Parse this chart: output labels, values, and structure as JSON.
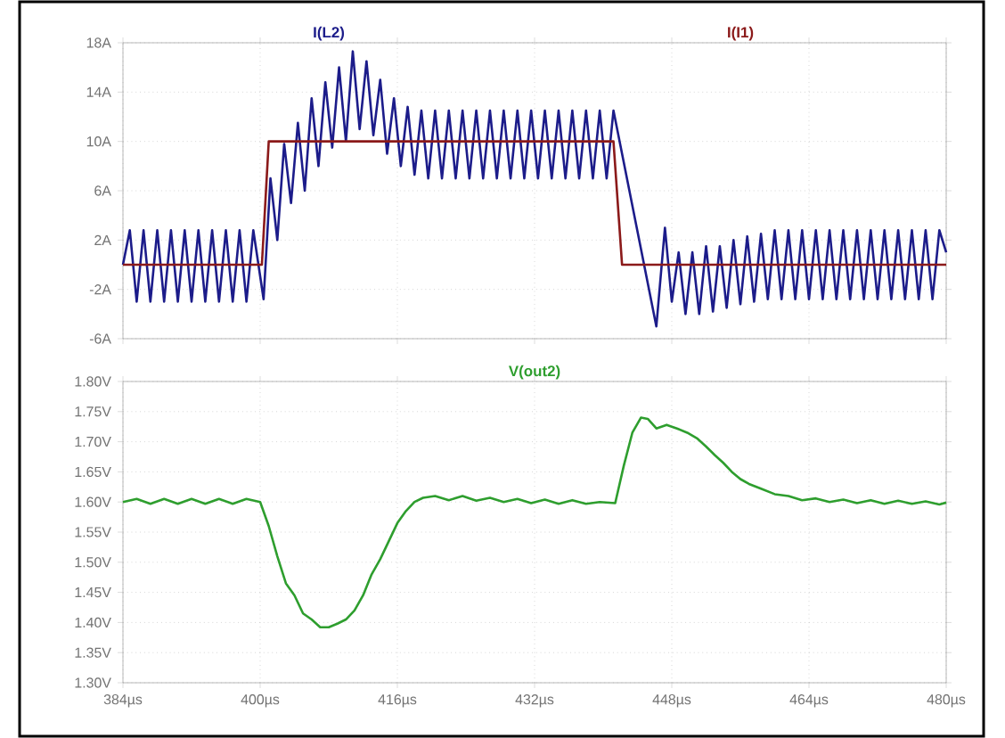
{
  "chart_data": [
    {
      "type": "line",
      "grid": true,
      "tick_labels": "y",
      "xlim": [
        384,
        480
      ],
      "xticks": [
        {
          "value": 384,
          "label": null
        },
        {
          "value": 400,
          "label": null
        },
        {
          "value": 416,
          "label": null
        },
        {
          "value": 432,
          "label": null
        },
        {
          "value": 448,
          "label": null
        },
        {
          "value": 464,
          "label": null
        },
        {
          "value": 480,
          "label": null
        }
      ],
      "ylim": [
        -6,
        18
      ],
      "yticks": [
        {
          "value": -6,
          "label": "-6A"
        },
        {
          "value": -2,
          "label": "-2A"
        },
        {
          "value": 2,
          "label": "2A"
        },
        {
          "value": 6,
          "label": "6A"
        },
        {
          "value": 10,
          "label": "10A"
        },
        {
          "value": 14,
          "label": "14A"
        },
        {
          "value": 18,
          "label": "18A"
        }
      ],
      "series": [
        {
          "name": "I(L2)",
          "color": "#1c1c8a",
          "x": [
            384,
            384.8,
            385.6,
            386.4,
            387.2,
            388,
            388.8,
            389.6,
            390.4,
            391.2,
            392,
            392.8,
            393.6,
            394.4,
            395.2,
            396,
            396.8,
            397.6,
            398.4,
            399.2,
            400.4,
            401.2,
            402,
            402.8,
            403.6,
            404.4,
            405.2,
            406,
            406.8,
            407.6,
            408.4,
            409.2,
            410,
            410.8,
            411.6,
            412.4,
            413.2,
            414,
            414.8,
            415.6,
            416.4,
            417.2,
            418,
            418.8,
            419.6,
            420.4,
            421.2,
            422,
            422.8,
            423.6,
            424.4,
            425.2,
            426,
            426.8,
            427.6,
            428.4,
            429.2,
            430,
            430.8,
            431.6,
            432.4,
            433.2,
            434,
            434.8,
            435.6,
            436.4,
            437.2,
            438,
            438.8,
            439.6,
            440.4,
            441.2,
            446.2,
            447.2,
            448,
            448.8,
            449.6,
            450.4,
            451.2,
            452,
            452.8,
            453.6,
            454.4,
            455.2,
            456,
            456.8,
            457.6,
            458.4,
            459.2,
            460,
            460.8,
            461.6,
            462.4,
            463.2,
            464,
            464.8,
            465.6,
            466.4,
            467.2,
            468,
            468.8,
            469.6,
            470.4,
            471.2,
            472,
            472.8,
            473.6,
            474.4,
            475.2,
            476,
            476.8,
            477.6,
            478.4,
            479.2,
            480
          ],
          "values": [
            0,
            2.8,
            -3,
            2.8,
            -3,
            2.8,
            -3,
            2.8,
            -3,
            2.8,
            -3,
            2.8,
            -3,
            2.8,
            -3,
            2.8,
            -3,
            2.8,
            -3,
            2.8,
            -2.8,
            7,
            2,
            9.8,
            5,
            11.5,
            6,
            13.5,
            8,
            14.8,
            9.5,
            16,
            10,
            17.3,
            11,
            16.5,
            10.5,
            15,
            9,
            13.5,
            8,
            12.8,
            7.3,
            12.5,
            7,
            12.5,
            7,
            12.5,
            7,
            12.5,
            7,
            12.5,
            7,
            12.5,
            7,
            12.5,
            7,
            12.5,
            7,
            12.5,
            7,
            12.5,
            7,
            12.5,
            7,
            12.5,
            7,
            12.5,
            7,
            12.5,
            7,
            12.5,
            -5,
            3,
            -3,
            1,
            -4,
            1,
            -4,
            1.5,
            -3.8,
            1.5,
            -3.5,
            2,
            -3.2,
            2.3,
            -3,
            2.5,
            -2.8,
            2.8,
            -2.8,
            2.8,
            -2.8,
            2.8,
            -2.8,
            2.8,
            -2.8,
            2.8,
            -2.8,
            2.8,
            -2.8,
            2.8,
            -2.8,
            2.8,
            -2.8,
            2.8,
            -2.8,
            2.8,
            -2.8,
            2.8,
            -2.8,
            2.8,
            -2.8,
            2.8,
            1
          ]
        },
        {
          "name": "I(I1)",
          "color": "#8b1a1a",
          "x": [
            384,
            400.2,
            401,
            441.2,
            442.2,
            480
          ],
          "values": [
            0,
            0,
            10,
            10,
            0,
            0
          ]
        }
      ]
    },
    {
      "type": "line",
      "grid": true,
      "xlim": [
        384,
        480
      ],
      "xticks": [
        {
          "value": 384,
          "label": "384µs"
        },
        {
          "value": 400,
          "label": "400µs"
        },
        {
          "value": 416,
          "label": "416µs"
        },
        {
          "value": 432,
          "label": "432µs"
        },
        {
          "value": 448,
          "label": "448µs"
        },
        {
          "value": 464,
          "label": "464µs"
        },
        {
          "value": 480,
          "label": "480µs"
        }
      ],
      "ylim": [
        1.3,
        1.8
      ],
      "yticks": [
        {
          "value": 1.3,
          "label": "1.30V"
        },
        {
          "value": 1.35,
          "label": "1.35V"
        },
        {
          "value": 1.4,
          "label": "1.40V"
        },
        {
          "value": 1.45,
          "label": "1.45V"
        },
        {
          "value": 1.5,
          "label": "1.50V"
        },
        {
          "value": 1.55,
          "label": "1.55V"
        },
        {
          "value": 1.6,
          "label": "1.60V"
        },
        {
          "value": 1.65,
          "label": "1.65V"
        },
        {
          "value": 1.7,
          "label": "1.70V"
        },
        {
          "value": 1.75,
          "label": "1.75V"
        },
        {
          "value": 1.8,
          "label": "1.80V"
        }
      ],
      "series": [
        {
          "name": "V(out2)",
          "color": "#2e9e2e",
          "x": [
            384,
            385.6,
            387.2,
            388.8,
            390.4,
            392,
            393.6,
            395.2,
            396.8,
            398.4,
            400,
            401,
            402,
            403,
            404,
            405,
            406,
            407,
            408,
            409,
            410,
            411,
            412,
            413,
            414,
            415,
            416,
            417,
            418,
            419,
            420.4,
            422,
            423.6,
            425.2,
            426.8,
            428.4,
            430,
            431.6,
            433.2,
            434.8,
            436.4,
            438,
            439.6,
            441.4,
            442.4,
            443.4,
            444.4,
            445.2,
            446.2,
            447.4,
            448.6,
            449.8,
            451,
            452,
            453,
            454,
            455,
            456,
            457,
            458.4,
            460,
            461.6,
            463.2,
            464.8,
            466.4,
            468,
            469.6,
            471.2,
            472.8,
            474.4,
            476,
            477.6,
            479.2,
            480
          ],
          "values": [
            1.6,
            1.605,
            1.597,
            1.605,
            1.597,
            1.605,
            1.597,
            1.605,
            1.597,
            1.605,
            1.6,
            1.56,
            1.51,
            1.465,
            1.445,
            1.415,
            1.405,
            1.392,
            1.392,
            1.398,
            1.405,
            1.42,
            1.445,
            1.48,
            1.505,
            1.535,
            1.565,
            1.585,
            1.6,
            1.607,
            1.61,
            1.603,
            1.61,
            1.602,
            1.607,
            1.6,
            1.605,
            1.598,
            1.604,
            1.597,
            1.603,
            1.597,
            1.6,
            1.598,
            1.66,
            1.715,
            1.74,
            1.738,
            1.722,
            1.728,
            1.722,
            1.715,
            1.705,
            1.692,
            1.678,
            1.665,
            1.65,
            1.638,
            1.63,
            1.622,
            1.613,
            1.61,
            1.603,
            1.606,
            1.6,
            1.604,
            1.598,
            1.603,
            1.597,
            1.602,
            1.597,
            1.601,
            1.596,
            1.599
          ]
        }
      ]
    }
  ]
}
